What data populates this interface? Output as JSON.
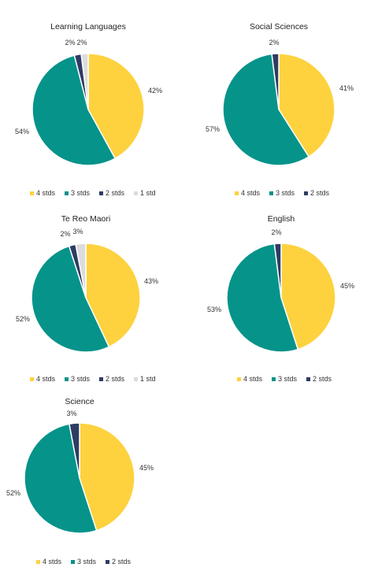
{
  "colors": {
    "4 stds": "#FDD23E",
    "3 stds": "#05938A",
    "2 stds": "#2E3C63",
    "1 std": "#DCDCDC"
  },
  "chart_data": [
    {
      "type": "pie",
      "title": "Learning Languages",
      "labels": [
        "4 stds",
        "3 stds",
        "2 stds",
        "1 std"
      ],
      "values": [
        42,
        54,
        2,
        2
      ],
      "value_labels": [
        "42%",
        "54%",
        "2%",
        "2%"
      ],
      "legend": [
        "4 stds",
        "3 stds",
        "2 stds",
        "1 std"
      ],
      "legend_placement": "bottom"
    },
    {
      "type": "pie",
      "title": "Social Sciences",
      "labels": [
        "4 stds",
        "3 stds",
        "2 stds"
      ],
      "values": [
        41,
        57,
        2
      ],
      "value_labels": [
        "41%",
        "57%",
        "2%"
      ],
      "legend": [
        "4 stds",
        "3 stds",
        "2 stds"
      ],
      "legend_placement": "bottom"
    },
    {
      "type": "pie",
      "title": "Te Reo Maori",
      "labels": [
        "4 stds",
        "3 stds",
        "2 stds",
        "1 std"
      ],
      "values": [
        43,
        52,
        2,
        3
      ],
      "value_labels": [
        "43%",
        "52%",
        "2%",
        "3%"
      ],
      "legend": [
        "4 stds",
        "3 stds",
        "2 stds",
        "1 std"
      ],
      "legend_placement": "bottom"
    },
    {
      "type": "pie",
      "title": "English",
      "labels": [
        "4 stds",
        "3 stds",
        "2 stds"
      ],
      "values": [
        45,
        53,
        2
      ],
      "value_labels": [
        "45%",
        "53%",
        "2%"
      ],
      "legend": [
        "4 stds",
        "3 stds",
        "2 stds"
      ],
      "legend_placement": "bottom"
    },
    {
      "type": "pie",
      "title": "Science",
      "labels": [
        "4 stds",
        "3 stds",
        "2 stds"
      ],
      "values": [
        45,
        52,
        3
      ],
      "value_labels": [
        "45%",
        "52%",
        "3%"
      ],
      "legend": [
        "4 stds",
        "3 stds",
        "2 stds"
      ],
      "legend_placement": "bottom"
    }
  ]
}
